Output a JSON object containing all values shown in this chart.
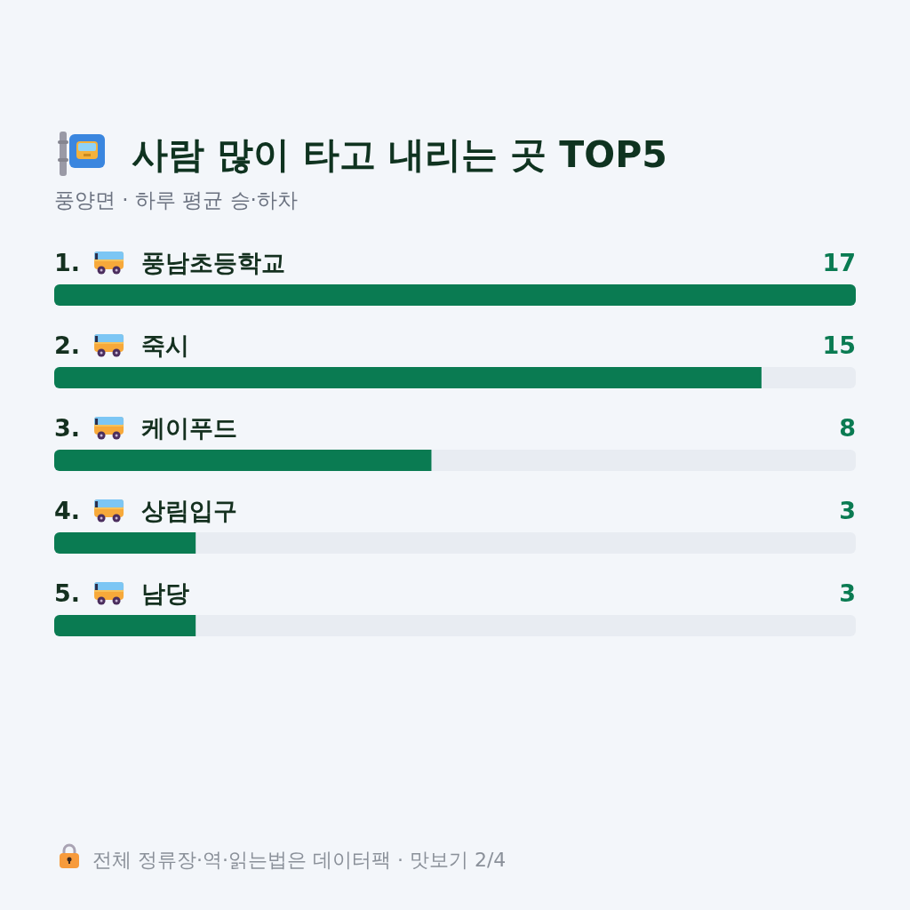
{
  "chart_data": {
    "type": "bar",
    "orientation": "horizontal",
    "title": "사람 많이 타고 내리는 곳 TOP5",
    "subtitle": "풍양면 · 하루 평균 승·하차",
    "categories": [
      "1. 풍남초등학교",
      "2. 죽시",
      "3. 케이푸드",
      "4. 상림입구",
      "5. 남당"
    ],
    "values": [
      17,
      15,
      8,
      3,
      3
    ],
    "color": "#0a7b52",
    "data_labels": true,
    "annotations": [
      "전체 정류장·역·읽는법은 데이터팩 · 맛보기 2/4"
    ]
  }
}
